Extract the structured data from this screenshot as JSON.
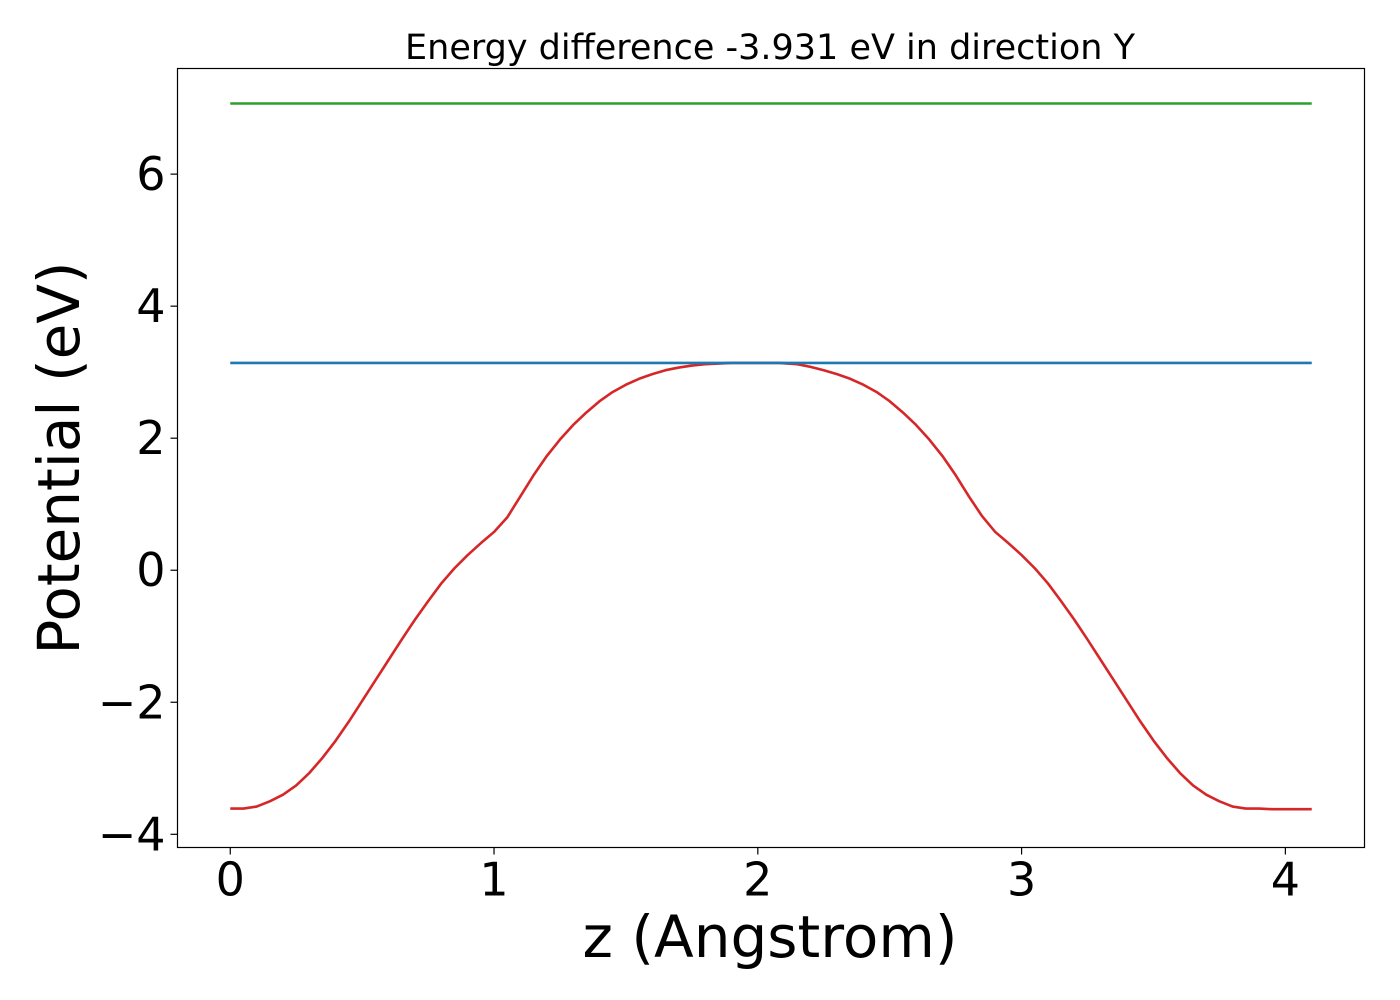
{
  "chart_data": {
    "type": "line",
    "title": "Energy difference -3.931 eV in direction Y",
    "xlabel": "z (Angstrom)",
    "ylabel": "Potential (eV)",
    "xlim": [
      -0.2,
      4.3
    ],
    "ylim": [
      -4.2,
      7.6
    ],
    "xticks": [
      0,
      1,
      2,
      3,
      4
    ],
    "xtick_labels": [
      "0",
      "1",
      "2",
      "3",
      "4"
    ],
    "yticks": [
      -4,
      -2,
      0,
      2,
      4,
      6
    ],
    "ytick_labels": [
      "−4",
      "−2",
      "0",
      "2",
      "4",
      "6"
    ],
    "grid": false,
    "series": [
      {
        "color": "#d62728",
        "x": [
          0.0,
          0.05,
          0.1,
          0.15,
          0.2,
          0.25,
          0.3,
          0.35,
          0.4,
          0.45,
          0.5,
          0.55,
          0.6,
          0.65,
          0.7,
          0.75,
          0.8,
          0.85,
          0.9,
          0.95,
          1.0,
          1.05,
          1.1,
          1.15,
          1.2,
          1.25,
          1.3,
          1.35,
          1.4,
          1.45,
          1.5,
          1.55,
          1.6,
          1.65,
          1.7,
          1.75,
          1.8,
          1.85,
          1.9,
          1.95,
          2.0,
          2.05,
          2.08,
          2.15,
          2.2,
          2.25,
          2.3,
          2.35,
          2.4,
          2.45,
          2.5,
          2.55,
          2.6,
          2.65,
          2.7,
          2.75,
          2.8,
          2.85,
          2.9,
          2.95,
          3.0,
          3.05,
          3.1,
          3.15,
          3.2,
          3.25,
          3.3,
          3.35,
          3.4,
          3.45,
          3.5,
          3.55,
          3.6,
          3.65,
          3.7,
          3.75,
          3.8,
          3.85,
          3.9,
          3.95,
          4.0,
          4.05,
          4.1
        ],
        "y": [
          -3.61,
          -3.61,
          -3.58,
          -3.5,
          -3.4,
          -3.26,
          -3.07,
          -2.84,
          -2.58,
          -2.29,
          -1.98,
          -1.67,
          -1.36,
          -1.05,
          -0.75,
          -0.47,
          -0.2,
          0.03,
          0.23,
          0.41,
          0.58,
          0.8,
          1.12,
          1.44,
          1.73,
          1.98,
          2.2,
          2.39,
          2.56,
          2.7,
          2.81,
          2.9,
          2.97,
          3.03,
          3.07,
          3.1,
          3.12,
          3.13,
          3.14,
          3.14,
          3.14,
          3.14,
          3.14,
          3.12,
          3.08,
          3.03,
          2.97,
          2.9,
          2.81,
          2.7,
          2.56,
          2.39,
          2.2,
          1.98,
          1.73,
          1.44,
          1.12,
          0.82,
          0.58,
          0.41,
          0.23,
          0.03,
          -0.2,
          -0.47,
          -0.75,
          -1.05,
          -1.36,
          -1.67,
          -1.98,
          -2.29,
          -2.58,
          -2.84,
          -3.07,
          -3.26,
          -3.4,
          -3.5,
          -3.58,
          -3.61,
          -3.61,
          -3.62,
          -3.62,
          -3.62,
          -3.62
        ]
      },
      {
        "color": "#1f77b4",
        "x": [
          0.0,
          4.1
        ],
        "y": [
          3.14,
          3.14
        ]
      },
      {
        "color": "#2ca02c",
        "x": [
          0.0,
          4.1
        ],
        "y": [
          7.07,
          7.07
        ]
      }
    ]
  }
}
